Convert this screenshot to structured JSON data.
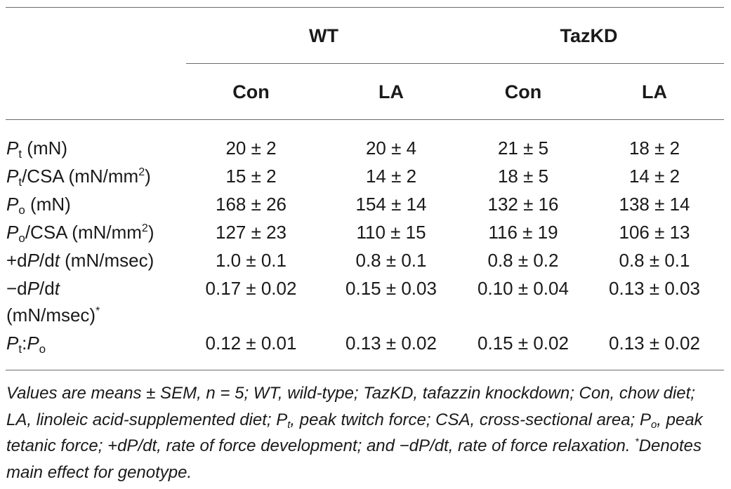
{
  "table": {
    "group_headers": {
      "wt": "WT",
      "tazkd": "TazKD"
    },
    "sub_headers": [
      "Con",
      "LA",
      "Con",
      "LA"
    ],
    "rows": [
      {
        "label": {
          "sym": "P",
          "sub": "t",
          "rest": " (mN)"
        },
        "cells": [
          "20 ± 2",
          "20 ± 4",
          "21 ± 5",
          "18 ± 2"
        ]
      },
      {
        "label": {
          "sym": "P",
          "sub": "t",
          "rest": "/CSA (mN/mm",
          "sup": "2",
          "tail": ")"
        },
        "cells": [
          "15 ± 2",
          "14 ± 2",
          "18 ± 5",
          "14 ± 2"
        ]
      },
      {
        "label": {
          "sym": "P",
          "sub": "o",
          "rest": " (mN)"
        },
        "cells": [
          "168 ± 26",
          "154 ± 14",
          "132 ± 16",
          "138 ± 14"
        ]
      },
      {
        "label": {
          "sym": "P",
          "sub": "o",
          "rest": "/CSA (mN/mm",
          "sup": "2",
          "tail": ")"
        },
        "cells": [
          "127 ± 23",
          "110 ± 15",
          "116 ± 19",
          "106 ± 13"
        ]
      },
      {
        "label": {
          "pre": "+d",
          "sym": "P",
          "mid": "/d",
          "sym2": "t",
          "rest": " (mN/msec)"
        },
        "cells": [
          "1.0 ± 0.1",
          "0.8 ± 0.1",
          "0.8 ± 0.2",
          "0.8 ± 0.1"
        ]
      },
      {
        "label": {
          "pre": "−d",
          "sym": "P",
          "mid": "/d",
          "sym2": "t",
          "line2": "(mN/msec)",
          "sup": "*"
        },
        "cells": [
          "0.17 ± 0.02",
          "0.15 ± 0.03",
          "0.10 ± 0.04",
          "0.13 ± 0.03"
        ]
      },
      {
        "label": {
          "sym": "P",
          "sub": "t",
          "mid": ":",
          "sym2": "P",
          "sub2": "o"
        },
        "cells": [
          "0.12 ± 0.01",
          "0.13 ± 0.02",
          "0.15 ± 0.02",
          "0.13 ± 0.02"
        ]
      }
    ]
  },
  "footnote": {
    "part1": "Values are means ± SEM, n = 5; WT, wild-type; TazKD, tafazzin knockdown; Con, chow diet; LA, linoleic acid-supplemented diet; P",
    "sub_t": "t",
    "part2": ", peak twitch force; CSA, cross-sectional area; P",
    "sub_o": "o",
    "part3": ", peak tetanic force; +dP/dt, rate of force development; and −dP/dt, rate of force relaxation. ",
    "star": "*",
    "part4": "Denotes main effect for genotype."
  }
}
